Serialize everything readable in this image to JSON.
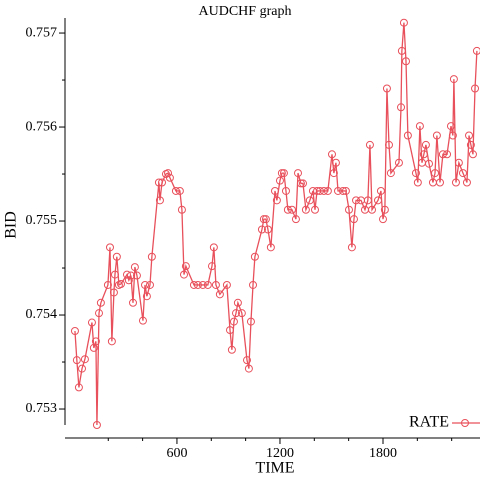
{
  "chart_data": {
    "type": "line",
    "title": "AUDCHF graph",
    "x_label": "TIME",
    "y_label": "BID",
    "legend": "bottom-right",
    "xlim": [
      -52,
      2365
    ],
    "ylim": [
      0.75283,
      0.75716
    ],
    "xticks": [
      600,
      1200,
      1800
    ],
    "xminor_ticks": [
      200,
      400,
      800,
      1000,
      1400,
      1600,
      2000,
      2200
    ],
    "yticks": [
      0.753,
      0.754,
      0.755,
      0.756,
      0.757
    ],
    "yminor_ticks": [
      0.7535,
      0.7545,
      0.7555,
      0.7565
    ],
    "x": [
      6,
      17,
      29,
      47,
      64,
      105,
      116,
      128,
      134,
      146,
      157,
      198,
      210,
      221,
      233,
      239,
      250,
      262,
      274,
      309,
      320,
      332,
      344,
      355,
      367,
      402,
      414,
      425,
      443,
      454,
      495,
      501,
      513,
      536,
      548,
      559,
      594,
      617,
      629,
      641,
      652,
      699,
      722,
      751,
      780,
      804,
      815,
      827,
      850,
      891,
      909,
      920,
      932,
      944,
      955,
      978,
      1008,
      1019,
      1031,
      1043,
      1054,
      1095,
      1106,
      1118,
      1130,
      1147,
      1171,
      1182,
      1200,
      1211,
      1223,
      1235,
      1246,
      1270,
      1293,
      1305,
      1322,
      1334,
      1351,
      1374,
      1392,
      1404,
      1416,
      1433,
      1456,
      1479,
      1503,
      1514,
      1526,
      1538,
      1567,
      1584,
      1602,
      1619,
      1631,
      1643,
      1672,
      1695,
      1712,
      1724,
      1736,
      1771,
      1788,
      1800,
      1811,
      1823,
      1835,
      1846,
      1893,
      1905,
      1910,
      1922,
      1934,
      1945,
      1992,
      2003,
      2015,
      2027,
      2038,
      2050,
      2068,
      2091,
      2103,
      2114,
      2132,
      2149,
      2173,
      2196,
      2207,
      2213,
      2225,
      2242,
      2266,
      2289,
      2301,
      2312,
      2324,
      2336,
      2347
    ],
    "series": [
      {
        "name": "RATE",
        "color": "#e8505b",
        "values": [
          0.75383,
          0.75352,
          0.75323,
          0.75343,
          0.75353,
          0.75392,
          0.75365,
          0.75372,
          0.75283,
          0.75402,
          0.75413,
          0.75432,
          0.75472,
          0.75372,
          0.75424,
          0.75443,
          0.75462,
          0.75432,
          0.75433,
          0.75443,
          0.75437,
          0.75442,
          0.75413,
          0.75451,
          0.75442,
          0.75394,
          0.75432,
          0.7542,
          0.75432,
          0.75462,
          0.75541,
          0.75522,
          0.75541,
          0.7555,
          0.75551,
          0.75546,
          0.75532,
          0.75532,
          0.75512,
          0.75443,
          0.75452,
          0.75432,
          0.75432,
          0.75432,
          0.75432,
          0.75452,
          0.75472,
          0.75432,
          0.75422,
          0.75432,
          0.75384,
          0.75363,
          0.75393,
          0.75402,
          0.75413,
          0.75402,
          0.75352,
          0.75343,
          0.75393,
          0.75432,
          0.75462,
          0.75491,
          0.75502,
          0.75502,
          0.75491,
          0.75472,
          0.75532,
          0.75522,
          0.75543,
          0.75551,
          0.75551,
          0.75532,
          0.75512,
          0.75512,
          0.75502,
          0.75551,
          0.7554,
          0.7554,
          0.75512,
          0.75522,
          0.75532,
          0.75512,
          0.75532,
          0.75532,
          0.75532,
          0.75532,
          0.75571,
          0.75551,
          0.75562,
          0.75532,
          0.75532,
          0.75532,
          0.75512,
          0.75472,
          0.75502,
          0.75522,
          0.75522,
          0.75512,
          0.75522,
          0.75581,
          0.75512,
          0.75522,
          0.75532,
          0.75502,
          0.75512,
          0.75641,
          0.75581,
          0.75551,
          0.75562,
          0.75621,
          0.75681,
          0.75711,
          0.7567,
          0.75591,
          0.75551,
          0.75541,
          0.75601,
          0.75562,
          0.75571,
          0.75581,
          0.75561,
          0.75541,
          0.75551,
          0.75591,
          0.75541,
          0.75571,
          0.75571,
          0.75601,
          0.75591,
          0.75651,
          0.75541,
          0.75562,
          0.75551,
          0.75541,
          0.75591,
          0.75581,
          0.75571,
          0.75641,
          0.75681
        ]
      }
    ]
  }
}
